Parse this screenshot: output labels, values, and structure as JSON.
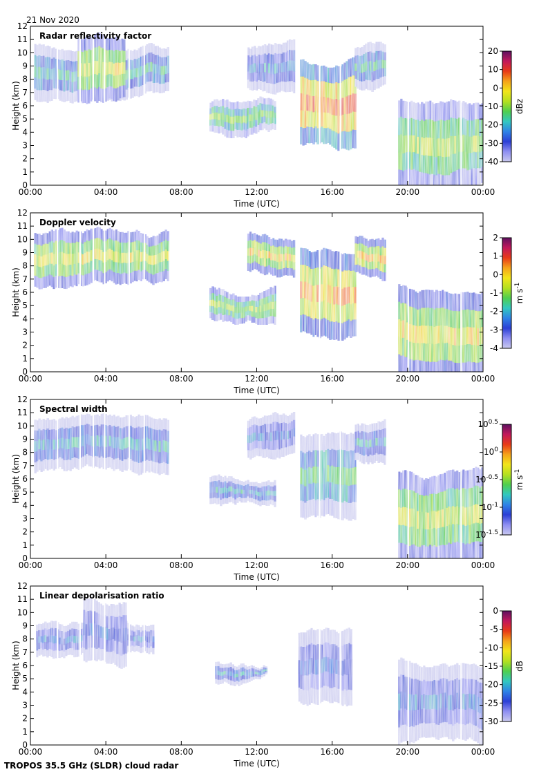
{
  "figure": {
    "date": "21 Nov 2020",
    "footer": "TROPOS 35.5 GHz (SLDR) cloud radar"
  },
  "colors": {
    "colormap": [
      "#ffffff",
      "#c9c9ef",
      "#8f8ff2",
      "#2c3fd6",
      "#2f83e6",
      "#32c8c0",
      "#4fcf4f",
      "#b4e020",
      "#f2e51a",
      "#f5a31a",
      "#e83a17",
      "#c2185b",
      "#5e1060"
    ]
  },
  "chart_data": [
    {
      "type": "heatmap",
      "title": "Radar reflectivity factor",
      "xlabel": "Time (UTC)",
      "ylabel": "Height (km)",
      "xlim": [
        0,
        24
      ],
      "ylim": [
        0,
        12
      ],
      "x_ticks": [
        "00:00",
        "04:00",
        "08:00",
        "12:00",
        "16:00",
        "20:00",
        "00:00"
      ],
      "y_ticks": [
        "0",
        "1",
        "2",
        "3",
        "4",
        "5",
        "6",
        "7",
        "8",
        "9",
        "10",
        "11",
        "12"
      ],
      "colorbar": {
        "label": "dBz",
        "range": [
          -40,
          20
        ],
        "ticks": [
          "20",
          "10",
          "0",
          "-10",
          "-20",
          "-30",
          "-40"
        ]
      },
      "cloud_regions": [
        {
          "t_start": 0.2,
          "t_end": 7.3,
          "base_km": 6.5,
          "top_km": 10.6,
          "value": -25
        },
        {
          "t_start": 2.5,
          "t_end": 5.0,
          "base_km": 6.2,
          "top_km": 11.2,
          "value": -12
        },
        {
          "t_start": 9.5,
          "t_end": 13.0,
          "base_km": 4.2,
          "top_km": 6.3,
          "value": -18
        },
        {
          "t_start": 11.5,
          "t_end": 14.0,
          "base_km": 7.5,
          "top_km": 10.5,
          "value": -30
        },
        {
          "t_start": 14.3,
          "t_end": 17.2,
          "base_km": 3.2,
          "top_km": 9.5,
          "value": -2
        },
        {
          "t_start": 17.2,
          "t_end": 18.8,
          "base_km": 7.5,
          "top_km": 10.2,
          "value": -25
        },
        {
          "t_start": 19.5,
          "t_end": 24.0,
          "base_km": 0.0,
          "top_km": 6.5,
          "value": -15
        }
      ]
    },
    {
      "type": "heatmap",
      "title": "Doppler velocity",
      "xlabel": "Time (UTC)",
      "ylabel": "Height (km)",
      "xlim": [
        0,
        24
      ],
      "ylim": [
        0,
        12
      ],
      "x_ticks": [
        "00:00",
        "04:00",
        "08:00",
        "12:00",
        "16:00",
        "20:00",
        "00:00"
      ],
      "y_ticks": [
        "0",
        "1",
        "2",
        "3",
        "4",
        "5",
        "6",
        "7",
        "8",
        "9",
        "10",
        "11",
        "12"
      ],
      "colorbar": {
        "label": "m s-1",
        "range": [
          -4,
          2
        ],
        "ticks": [
          "2",
          "1",
          "0",
          "-1",
          "-2",
          "-3",
          "-4"
        ]
      },
      "cloud_regions": [
        {
          "t_start": 0.2,
          "t_end": 7.3,
          "base_km": 6.5,
          "top_km": 10.6,
          "value": -1.2
        },
        {
          "t_start": 9.5,
          "t_end": 13.0,
          "base_km": 4.2,
          "top_km": 6.3,
          "value": -1.5
        },
        {
          "t_start": 11.5,
          "t_end": 14.0,
          "base_km": 7.5,
          "top_km": 10.5,
          "value": -0.9
        },
        {
          "t_start": 14.3,
          "t_end": 17.2,
          "base_km": 3.0,
          "top_km": 9.5,
          "value": -0.6
        },
        {
          "t_start": 17.2,
          "t_end": 18.8,
          "base_km": 7.5,
          "top_km": 10.2,
          "value": -0.8
        },
        {
          "t_start": 19.5,
          "t_end": 24.0,
          "base_km": 0.0,
          "top_km": 6.5,
          "value": -1.0
        }
      ]
    },
    {
      "type": "heatmap",
      "title": "Spectral width",
      "xlabel": "Time (UTC)",
      "ylabel": "Height (km)",
      "xlim": [
        0,
        24
      ],
      "ylim": [
        0,
        12
      ],
      "x_ticks": [
        "00:00",
        "04:00",
        "08:00",
        "12:00",
        "16:00",
        "20:00",
        "00:00"
      ],
      "y_ticks": [
        "0",
        "1",
        "2",
        "3",
        "4",
        "5",
        "6",
        "7",
        "8",
        "9",
        "10",
        "11",
        "12"
      ],
      "colorbar": {
        "label": "m s-1",
        "scale": "log10",
        "range": [
          -1.5,
          0.5
        ],
        "ticks": [
          "10^0.5",
          "10^0",
          "10^-0.5",
          "10^-1",
          "10^-1.5"
        ]
      },
      "cloud_regions": [
        {
          "t_start": 0.2,
          "t_end": 7.3,
          "base_km": 6.5,
          "top_km": 10.6,
          "value": -1.1
        },
        {
          "t_start": 9.5,
          "t_end": 13.0,
          "base_km": 4.2,
          "top_km": 6.3,
          "value": -1.1
        },
        {
          "t_start": 11.5,
          "t_end": 14.0,
          "base_km": 7.5,
          "top_km": 10.5,
          "value": -1.25
        },
        {
          "t_start": 14.3,
          "t_end": 17.2,
          "base_km": 3.0,
          "top_km": 9.5,
          "value": -0.9
        },
        {
          "t_start": 17.2,
          "t_end": 18.8,
          "base_km": 7.5,
          "top_km": 10.2,
          "value": -1.1
        },
        {
          "t_start": 19.5,
          "t_end": 24.0,
          "base_km": 0.0,
          "top_km": 6.5,
          "value": -0.6
        }
      ]
    },
    {
      "type": "heatmap",
      "title": "Linear depolarisation ratio",
      "xlabel": "Time (UTC)",
      "ylabel": "Height (km)",
      "xlim": [
        0,
        24
      ],
      "ylim": [
        0,
        12
      ],
      "x_ticks": [
        "00:00",
        "04:00",
        "08:00",
        "12:00",
        "16:00",
        "20:00",
        "00:00"
      ],
      "y_ticks": [
        "0",
        "1",
        "2",
        "3",
        "4",
        "5",
        "6",
        "7",
        "8",
        "9",
        "10",
        "11",
        "12"
      ],
      "colorbar": {
        "label": "dB",
        "range": [
          -30,
          0
        ],
        "ticks": [
          "0",
          "-5",
          "-10",
          "-15",
          "-20",
          "-25",
          "-30"
        ]
      },
      "cloud_regions": [
        {
          "t_start": 0.3,
          "t_end": 6.5,
          "base_km": 6.5,
          "top_km": 9.0,
          "value": -26
        },
        {
          "t_start": 2.8,
          "t_end": 5.0,
          "base_km": 6.4,
          "top_km": 11.0,
          "value": -27
        },
        {
          "t_start": 9.8,
          "t_end": 12.5,
          "base_km": 4.8,
          "top_km": 6.2,
          "value": -24
        },
        {
          "t_start": 14.2,
          "t_end": 17.0,
          "base_km": 3.2,
          "top_km": 8.5,
          "value": -27
        },
        {
          "t_start": 19.5,
          "t_end": 24.0,
          "base_km": 0.0,
          "top_km": 6.5,
          "value": -26
        }
      ]
    }
  ]
}
